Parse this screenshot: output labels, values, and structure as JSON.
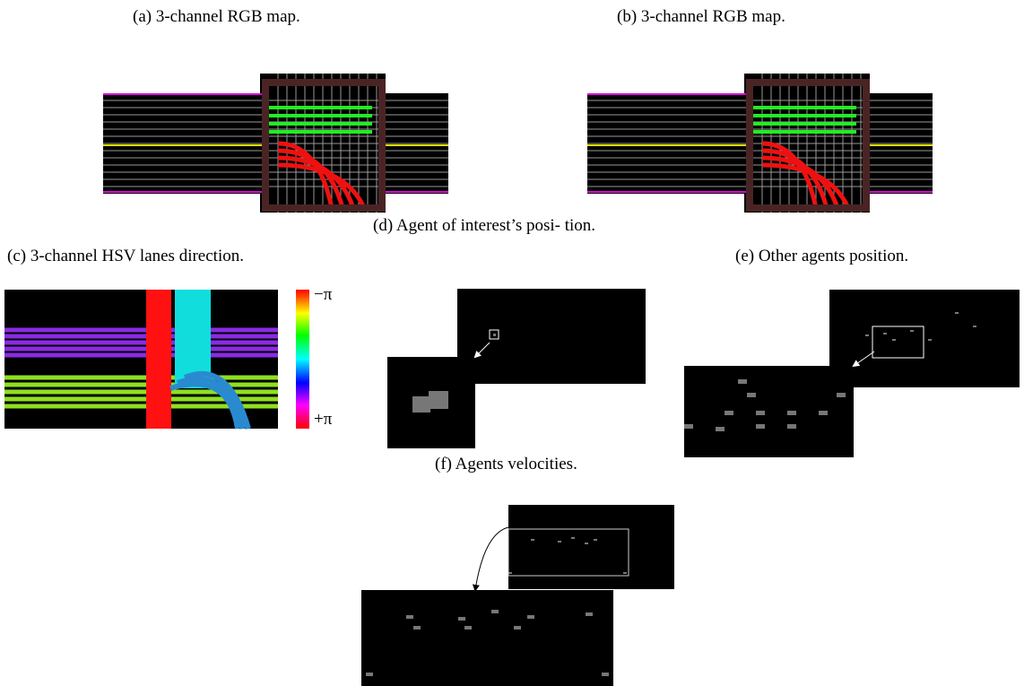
{
  "captions": {
    "a": "(a) 3-channel RGB map.",
    "b": "(b) 3-channel RGB map.",
    "c": "(c) 3-channel HSV lanes direction.",
    "d": "(d) Agent of interest’s posi- tion.",
    "e": "(e) Other agents position.",
    "f": "(f) Agents velocities."
  },
  "colorbar": {
    "top": "−π",
    "bottom": "+π"
  }
}
